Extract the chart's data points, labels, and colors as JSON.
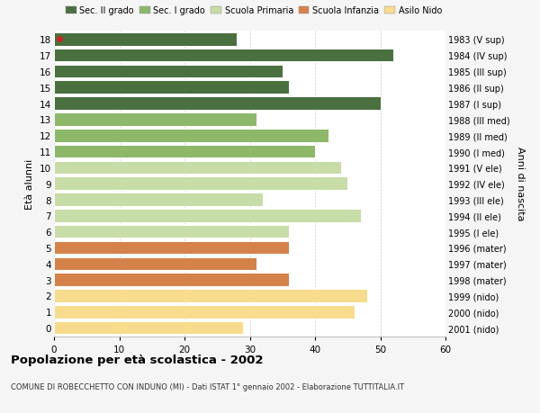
{
  "ages": [
    0,
    1,
    2,
    3,
    4,
    5,
    6,
    7,
    8,
    9,
    10,
    11,
    12,
    13,
    14,
    15,
    16,
    17,
    18
  ],
  "values": [
    29,
    46,
    48,
    36,
    31,
    36,
    36,
    47,
    32,
    45,
    44,
    40,
    42,
    31,
    50,
    36,
    35,
    52,
    28
  ],
  "right_labels": [
    "2001 (nido)",
    "2000 (nido)",
    "1999 (nido)",
    "1998 (mater)",
    "1997 (mater)",
    "1996 (mater)",
    "1995 (I ele)",
    "1994 (II ele)",
    "1993 (III ele)",
    "1992 (IV ele)",
    "1991 (V ele)",
    "1990 (I med)",
    "1989 (II med)",
    "1988 (III med)",
    "1987 (I sup)",
    "1986 (II sup)",
    "1985 (III sup)",
    "1984 (IV sup)",
    "1983 (V sup)"
  ],
  "colors": [
    "#f7dc8e",
    "#f7dc8e",
    "#f7dc8e",
    "#d4824a",
    "#d4824a",
    "#d4824a",
    "#c8dca8",
    "#c8dca8",
    "#c8dca8",
    "#c8dca8",
    "#c8dca8",
    "#8db86a",
    "#8db86a",
    "#8db86a",
    "#4a7040",
    "#4a7040",
    "#4a7040",
    "#4a7040",
    "#4a7040"
  ],
  "legend_labels": [
    "Sec. II grado",
    "Sec. I grado",
    "Scuola Primaria",
    "Scuola Infanzia",
    "Asilo Nido"
  ],
  "legend_colors": [
    "#4a7040",
    "#8db86a",
    "#c8dca8",
    "#d4824a",
    "#f7dc8e"
  ],
  "ylabel_left": "Età alunni",
  "ylabel_right": "Anni di nascita",
  "title": "Popolazione per età scolastica - 2002",
  "subtitle": "COMUNE DI ROBECCHETTO CON INDUNO (MI) - Dati ISTAT 1° gennaio 2002 - Elaborazione TUTTITALIA.IT",
  "xlim": [
    0,
    60
  ],
  "xticks": [
    0,
    10,
    20,
    30,
    40,
    50,
    60
  ],
  "bg_color": "#f5f5f5",
  "plot_bg": "#ffffff",
  "dot_color": "#cc2222",
  "dot_age": 18,
  "bar_height": 0.82
}
